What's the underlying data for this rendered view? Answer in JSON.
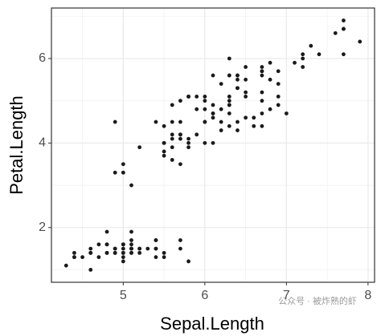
{
  "chart_data": {
    "type": "scatter",
    "x_label": "Sepal.Length",
    "y_label": "Petal.Length",
    "xlim": [
      4.12,
      8.08
    ],
    "ylim": [
      0.705,
      7.195
    ],
    "xticks": [
      5,
      6,
      7,
      8
    ],
    "yticks": [
      2,
      4,
      6
    ],
    "grid": true,
    "color": "#1a1a1a",
    "x": [
      5.1,
      4.9,
      4.7,
      4.6,
      5.0,
      5.4,
      4.6,
      5.0,
      4.4,
      4.9,
      5.4,
      4.8,
      4.8,
      4.3,
      5.8,
      5.7,
      5.4,
      5.1,
      5.7,
      5.1,
      5.4,
      5.1,
      4.6,
      5.1,
      4.8,
      5.0,
      5.0,
      5.2,
      5.2,
      4.7,
      4.8,
      5.4,
      5.2,
      5.5,
      4.9,
      5.0,
      5.5,
      4.9,
      4.4,
      5.1,
      5.0,
      4.5,
      4.4,
      5.0,
      5.1,
      4.8,
      5.1,
      4.6,
      5.3,
      5.0,
      7.0,
      6.4,
      6.9,
      5.5,
      6.5,
      5.7,
      6.3,
      4.9,
      6.6,
      5.2,
      5.0,
      5.9,
      6.0,
      6.1,
      5.6,
      6.7,
      5.6,
      5.8,
      6.2,
      5.6,
      5.9,
      6.1,
      6.3,
      6.1,
      6.4,
      6.6,
      6.8,
      6.7,
      6.0,
      5.7,
      5.5,
      5.5,
      5.8,
      6.0,
      5.4,
      6.0,
      6.7,
      6.3,
      5.6,
      5.5,
      5.5,
      6.1,
      5.8,
      5.0,
      5.6,
      5.7,
      5.7,
      6.2,
      5.1,
      5.7,
      6.3,
      5.8,
      7.1,
      6.3,
      6.5,
      7.6,
      4.9,
      7.3,
      6.7,
      7.2,
      6.5,
      6.4,
      6.8,
      5.7,
      5.8,
      6.4,
      6.5,
      7.7,
      7.7,
      6.0,
      6.9,
      5.6,
      7.7,
      6.3,
      6.7,
      7.2,
      6.2,
      6.1,
      6.4,
      7.2,
      7.4,
      7.9,
      6.4,
      6.3,
      6.1,
      7.7,
      6.3,
      6.4,
      6.0,
      6.9,
      6.7,
      6.9,
      5.8,
      6.8,
      6.7,
      6.7,
      6.3,
      6.5,
      6.2,
      5.9
    ],
    "y": [
      1.4,
      1.4,
      1.3,
      1.5,
      1.4,
      1.7,
      1.4,
      1.5,
      1.4,
      1.5,
      1.5,
      1.6,
      1.4,
      1.1,
      1.2,
      1.5,
      1.3,
      1.4,
      1.7,
      1.5,
      1.7,
      1.5,
      1.0,
      1.7,
      1.9,
      1.6,
      1.6,
      1.5,
      1.4,
      1.6,
      1.6,
      1.5,
      1.5,
      1.4,
      1.5,
      1.2,
      1.3,
      1.4,
      1.3,
      1.5,
      1.3,
      1.3,
      1.3,
      1.6,
      1.9,
      1.4,
      1.6,
      1.4,
      1.5,
      1.4,
      4.7,
      4.5,
      4.9,
      4.0,
      4.6,
      4.5,
      4.7,
      3.3,
      4.6,
      3.9,
      3.5,
      4.2,
      4.0,
      4.7,
      3.6,
      4.4,
      4.5,
      4.1,
      4.5,
      3.9,
      4.8,
      4.0,
      4.9,
      4.7,
      4.3,
      4.4,
      4.8,
      5.0,
      4.5,
      3.5,
      3.8,
      3.7,
      3.9,
      5.1,
      4.5,
      4.5,
      4.7,
      4.4,
      4.1,
      4.0,
      4.4,
      4.6,
      4.0,
      3.3,
      4.2,
      4.2,
      4.2,
      4.3,
      3.0,
      4.1,
      6.0,
      5.1,
      5.9,
      5.6,
      5.8,
      6.6,
      4.5,
      6.3,
      5.8,
      6.1,
      5.1,
      5.3,
      5.5,
      5.0,
      5.1,
      5.3,
      5.5,
      6.7,
      6.9,
      5.0,
      5.7,
      4.9,
      6.7,
      4.9,
      5.7,
      6.0,
      4.8,
      4.9,
      5.6,
      5.8,
      6.1,
      6.4,
      5.6,
      5.1,
      5.6,
      6.1,
      5.6,
      5.5,
      4.8,
      5.4,
      5.6,
      5.1,
      5.1,
      5.9,
      5.7,
      5.2,
      5.0,
      5.2,
      5.4,
      5.1
    ],
    "watermark": "公众号 · 被炸熟的虾"
  }
}
